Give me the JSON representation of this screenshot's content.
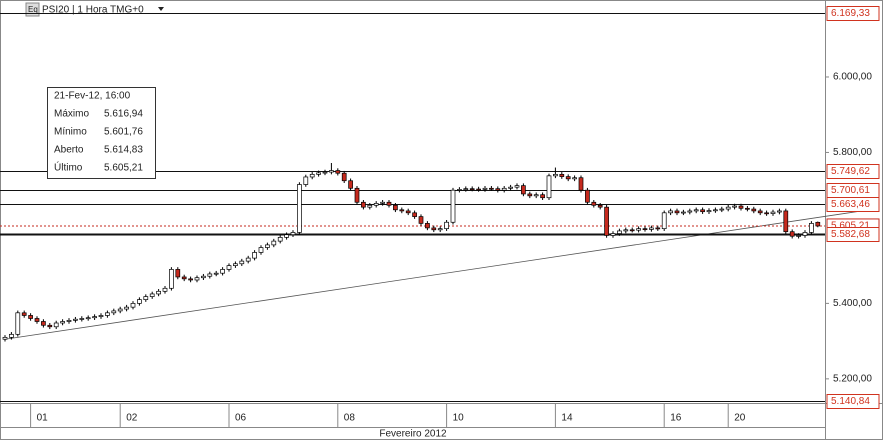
{
  "chart_data": {
    "type": "candlestick",
    "title": "PSI20 | 1 Hora TMG+0",
    "icon_label": "Eq",
    "x_axis_label": "Fevereiro 2012",
    "ylim": [
      5136,
      6204
    ],
    "yticks": [
      {
        "value": 5200,
        "label": "5.200,00"
      },
      {
        "value": 5400,
        "label": "5.400,00"
      },
      {
        "value": 5800,
        "label": "5.800,00"
      },
      {
        "value": 6000,
        "label": "6.000,00"
      }
    ],
    "up_color": "#ffffff",
    "down_color": "#c62a1e",
    "outline_color": "#000000",
    "categories": [
      null,
      null,
      null,
      null,
      "01",
      null,
      null,
      null,
      null,
      null,
      null,
      null,
      null,
      null,
      null,
      null,
      null,
      null,
      "02",
      null,
      null,
      null,
      null,
      null,
      null,
      null,
      null,
      null,
      null,
      null,
      null,
      null,
      null,
      null,
      null,
      "06",
      null,
      null,
      null,
      null,
      null,
      null,
      null,
      null,
      null,
      null,
      null,
      null,
      null,
      null,
      null,
      null,
      "08",
      null,
      null,
      null,
      null,
      null,
      null,
      null,
      null,
      null,
      null,
      null,
      null,
      null,
      null,
      null,
      null,
      "10",
      null,
      null,
      null,
      null,
      null,
      null,
      null,
      null,
      null,
      null,
      null,
      null,
      null,
      null,
      null,
      null,
      "14",
      null,
      null,
      null,
      null,
      null,
      null,
      null,
      null,
      null,
      null,
      null,
      null,
      null,
      null,
      null,
      null,
      "16",
      null,
      null,
      null,
      null,
      null,
      null,
      null,
      null,
      null,
      "20",
      null,
      null,
      null,
      null,
      null,
      null,
      null,
      null,
      null,
      null,
      null,
      null,
      null,
      null
    ],
    "open": [
      5305,
      5310,
      5318,
      5375,
      5368,
      5360,
      5352,
      5342,
      5338,
      5348,
      5352,
      5355,
      5358,
      5360,
      5362,
      5365,
      5368,
      5375,
      5380,
      5385,
      5390,
      5400,
      5410,
      5418,
      5425,
      5432,
      5440,
      5490,
      5470,
      5465,
      5462,
      5468,
      5472,
      5478,
      5480,
      5490,
      5500,
      5505,
      5512,
      5520,
      5535,
      5548,
      5555,
      5565,
      5575,
      5582,
      5588,
      5715,
      5735,
      5742,
      5746,
      5748,
      5752,
      5745,
      5725,
      5705,
      5668,
      5655,
      5660,
      5665,
      5668,
      5660,
      5648,
      5645,
      5640,
      5630,
      5612,
      5600,
      5595,
      5598,
      5615,
      5700,
      5702,
      5704,
      5703,
      5702,
      5705,
      5704,
      5700,
      5705,
      5708,
      5712,
      5690,
      5685,
      5688,
      5680,
      5738,
      5742,
      5736,
      5730,
      5733,
      5700,
      5668,
      5660,
      5655,
      5580,
      5585,
      5592,
      5595,
      5594,
      5598,
      5596,
      5600,
      5598,
      5640,
      5645,
      5640,
      5642,
      5645,
      5648,
      5643,
      5646,
      5648,
      5650,
      5655,
      5658,
      5652,
      5650,
      5645,
      5640,
      5638,
      5642,
      5645,
      5590,
      5578,
      5580,
      5588,
      5614.83
    ],
    "high": [
      5316,
      5324,
      5381,
      5381,
      5374,
      5366,
      5358,
      5348,
      5354,
      5358,
      5361,
      5364,
      5366,
      5368,
      5371,
      5374,
      5381,
      5386,
      5391,
      5396,
      5406,
      5416,
      5424,
      5431,
      5438,
      5446,
      5496,
      5496,
      5476,
      5471,
      5474,
      5478,
      5484,
      5486,
      5496,
      5506,
      5511,
      5518,
      5526,
      5541,
      5554,
      5561,
      5571,
      5581,
      5588,
      5594,
      5721,
      5741,
      5748,
      5752,
      5754,
      5772,
      5758,
      5751,
      5731,
      5711,
      5674,
      5666,
      5671,
      5674,
      5674,
      5666,
      5654,
      5651,
      5646,
      5636,
      5618,
      5606,
      5604,
      5621,
      5706,
      5708,
      5710,
      5710,
      5709,
      5711,
      5711,
      5710,
      5711,
      5714,
      5718,
      5718,
      5696,
      5694,
      5694,
      5744,
      5760,
      5748,
      5742,
      5739,
      5739,
      5706,
      5674,
      5666,
      5661,
      5591,
      5598,
      5601,
      5601,
      5604,
      5604,
      5606,
      5606,
      5646,
      5651,
      5651,
      5648,
      5651,
      5654,
      5654,
      5652,
      5654,
      5656,
      5661,
      5664,
      5664,
      5658,
      5656,
      5651,
      5646,
      5648,
      5651,
      5651,
      5596,
      5586,
      5594,
      5618,
      5616.94
    ],
    "low": [
      5299,
      5304,
      5312,
      5362,
      5354,
      5346,
      5336,
      5332,
      5332,
      5342,
      5346,
      5349,
      5352,
      5354,
      5356,
      5359,
      5362,
      5369,
      5374,
      5379,
      5384,
      5394,
      5404,
      5412,
      5419,
      5426,
      5434,
      5464,
      5459,
      5456,
      5456,
      5462,
      5466,
      5472,
      5474,
      5484,
      5494,
      5499,
      5506,
      5514,
      5529,
      5542,
      5549,
      5559,
      5569,
      5576,
      5582,
      5709,
      5729,
      5736,
      5740,
      5742,
      5739,
      5719,
      5699,
      5662,
      5649,
      5649,
      5654,
      5659,
      5654,
      5642,
      5639,
      5634,
      5624,
      5606,
      5594,
      5589,
      5589,
      5592,
      5609,
      5694,
      5696,
      5697,
      5696,
      5696,
      5698,
      5694,
      5694,
      5699,
      5702,
      5684,
      5679,
      5679,
      5674,
      5674,
      5732,
      5730,
      5724,
      5724,
      5694,
      5662,
      5654,
      5649,
      5574,
      5574,
      5579,
      5586,
      5588,
      5588,
      5590,
      5590,
      5592,
      5592,
      5634,
      5634,
      5634,
      5636,
      5639,
      5637,
      5637,
      5640,
      5642,
      5644,
      5649,
      5646,
      5644,
      5639,
      5634,
      5632,
      5632,
      5636,
      5584,
      5572,
      5572,
      5574,
      5582,
      5601.76
    ],
    "close": [
      5310,
      5318,
      5375,
      5368,
      5360,
      5352,
      5342,
      5338,
      5348,
      5352,
      5355,
      5358,
      5360,
      5362,
      5365,
      5368,
      5375,
      5380,
      5385,
      5390,
      5400,
      5410,
      5418,
      5425,
      5432,
      5440,
      5490,
      5470,
      5465,
      5462,
      5468,
      5472,
      5478,
      5480,
      5490,
      5500,
      5505,
      5512,
      5520,
      5535,
      5548,
      5555,
      5565,
      5575,
      5582,
      5588,
      5715,
      5735,
      5742,
      5746,
      5748,
      5752,
      5745,
      5725,
      5705,
      5668,
      5655,
      5660,
      5665,
      5668,
      5660,
      5648,
      5645,
      5640,
      5630,
      5612,
      5600,
      5595,
      5598,
      5615,
      5700,
      5702,
      5704,
      5703,
      5702,
      5705,
      5704,
      5700,
      5705,
      5708,
      5712,
      5690,
      5685,
      5688,
      5680,
      5738,
      5742,
      5736,
      5730,
      5733,
      5700,
      5668,
      5660,
      5655,
      5580,
      5585,
      5592,
      5595,
      5594,
      5598,
      5596,
      5600,
      5598,
      5640,
      5645,
      5640,
      5642,
      5645,
      5648,
      5643,
      5646,
      5648,
      5650,
      5655,
      5658,
      5652,
      5650,
      5645,
      5640,
      5638,
      5642,
      5645,
      5590,
      5578,
      5580,
      5588,
      5612,
      5605.21
    ],
    "levels": [
      {
        "value": 6169.33,
        "label": "6.169,33"
      },
      {
        "value": 5749.62,
        "label": "5.749,62"
      },
      {
        "value": 5700.61,
        "label": "5.700,61"
      },
      {
        "value": 5663.46,
        "label": "5.663,46"
      },
      {
        "value": 5582.68,
        "label": "5.582,68"
      },
      {
        "value": 5140.84,
        "label": "5.140,84"
      }
    ],
    "last_price": {
      "value": 5605.21,
      "label": "5.605,21",
      "color": "#c62a1e"
    },
    "trendline": {
      "start": [
        0,
        5305
      ],
      "end": [
        135,
        5648
      ]
    },
    "tooltip": {
      "title": "21-Fev-12, 16:00",
      "rows": [
        {
          "label": "Máximo",
          "value": "5.616,94"
        },
        {
          "label": "Mínimo",
          "value": "5.601,76"
        },
        {
          "label": "Aberto",
          "value": "5.614,83"
        },
        {
          "label": "Último",
          "value": "5.605,21"
        }
      ]
    }
  }
}
